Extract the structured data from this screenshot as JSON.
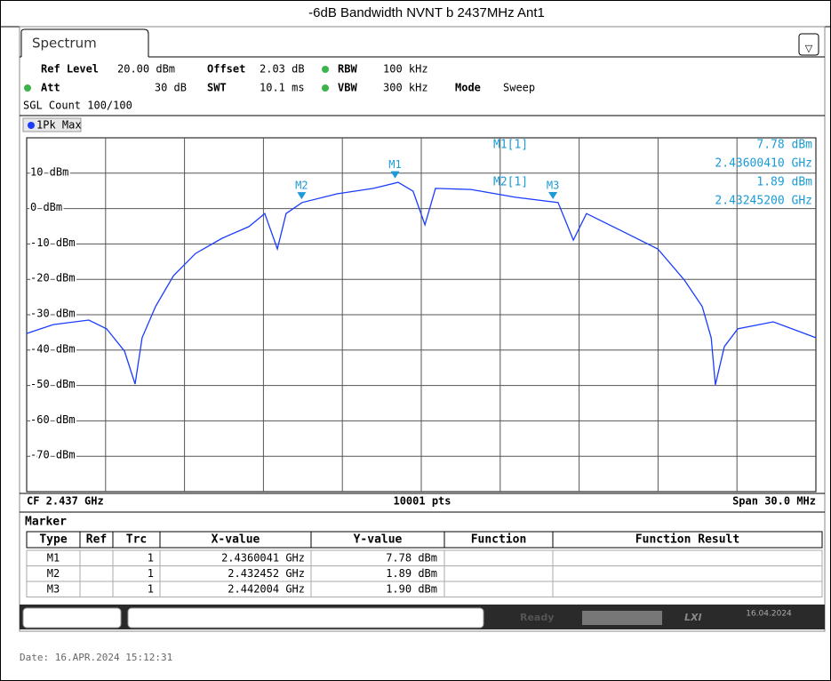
{
  "title": "-6dB Bandwidth NVNT b 2437MHz Ant1",
  "tab": "Spectrum",
  "settings": {
    "ref_level_label": "Ref Level",
    "ref_level": "20.00 dBm",
    "offset_label": "Offset",
    "offset": "2.03 dB",
    "rbw_label": "RBW",
    "rbw": "100 kHz",
    "att_label": "Att",
    "att": "30 dB",
    "swt_label": "SWT",
    "swt": "10.1 ms",
    "vbw_label": "VBW",
    "vbw": "300 kHz",
    "mode_label": "Mode",
    "mode": "Sweep",
    "sgl_count": "SGL Count 100/100"
  },
  "marker_readout": [
    {
      "label": "M1[1]",
      "level": "7.78 dBm",
      "freq": "2.43600410 GHz"
    },
    {
      "label": "M2[1]",
      "level": "1.89 dBm",
      "freq": "2.43245200 GHz"
    }
  ],
  "chart_data": {
    "type": "line",
    "x": [
      2.422,
      2.42301,
      2.42436,
      2.42504,
      2.42572,
      2.42612,
      2.42639,
      2.4269,
      2.42758,
      2.42842,
      2.42943,
      2.43045,
      2.43105,
      2.43153,
      2.43186,
      2.43247,
      2.43382,
      2.43518,
      2.43612,
      2.43669,
      2.43714,
      2.43754,
      2.43889,
      2.44058,
      2.4422,
      2.44278,
      2.44328,
      2.44464,
      2.44599,
      2.447,
      2.44768,
      2.44802,
      2.44818,
      2.44852,
      2.44903,
      2.45038,
      2.452
    ],
    "series": [
      {
        "name": "1Pk Max",
        "color": "#1a3cff",
        "values": [
          -35.3,
          -32.8,
          -31.5,
          -34,
          -40.3,
          -49.6,
          -36.5,
          -27.7,
          -19,
          -12.7,
          -8.4,
          -5.1,
          -1.4,
          -11.4,
          -1.4,
          1.7,
          4.2,
          5.7,
          7.4,
          4.9,
          -4.6,
          5.7,
          5.4,
          3.2,
          1.7,
          -8.9,
          -1.4,
          -6.4,
          -11.4,
          -20.2,
          -27.7,
          -36.5,
          -49.8,
          -39,
          -34,
          -32,
          -36.5
        ]
      }
    ],
    "markers": [
      {
        "label": "M1",
        "x": 2.4360041,
        "y": 7.78
      },
      {
        "label": "M2",
        "x": 2.432452,
        "y": 1.89
      },
      {
        "label": "M3",
        "x": 2.442004,
        "y": 1.9
      }
    ],
    "marker_color": "#1a9ad6",
    "xlim": [
      2.422,
      2.452
    ],
    "ylim": [
      -80,
      20
    ],
    "yticks": [
      {
        "value": 10,
        "label": "10 dBm"
      },
      {
        "value": 0,
        "label": "0 dBm"
      },
      {
        "value": -10,
        "label": "-10 dBm"
      },
      {
        "value": -20,
        "label": "-20 dBm"
      },
      {
        "value": -30,
        "label": "-30 dBm"
      },
      {
        "value": -40,
        "label": "-40 dBm"
      },
      {
        "value": -50,
        "label": "-50 dBm"
      },
      {
        "value": -60,
        "label": "-60 dBm"
      },
      {
        "value": -70,
        "label": "-70 dBm"
      }
    ],
    "grid": true,
    "footer": {
      "center_freq": "CF 2.437 GHz",
      "points": "10001 pts",
      "span": "Span 30.0 MHz"
    }
  },
  "marker_table": {
    "title": "Marker",
    "headers": [
      "Type",
      "Ref",
      "Trc",
      "X-value",
      "Y-value",
      "Function",
      "Function Result"
    ],
    "rows": [
      {
        "type": "M1",
        "trc": 1,
        "x": "2.4360041 GHz",
        "y": "7.78 dBm"
      },
      {
        "type": "M2",
        "trc": 1,
        "x": "2.432452 GHz",
        "y": "1.89 dBm"
      },
      {
        "type": "M3",
        "trc": 1,
        "x": "2.442004 GHz",
        "y": "1.90 dBm"
      }
    ]
  },
  "status": {
    "state": "Ready",
    "date": "16.04.2024"
  },
  "date_line": "Date: 16.APR.2024  15:12:31"
}
